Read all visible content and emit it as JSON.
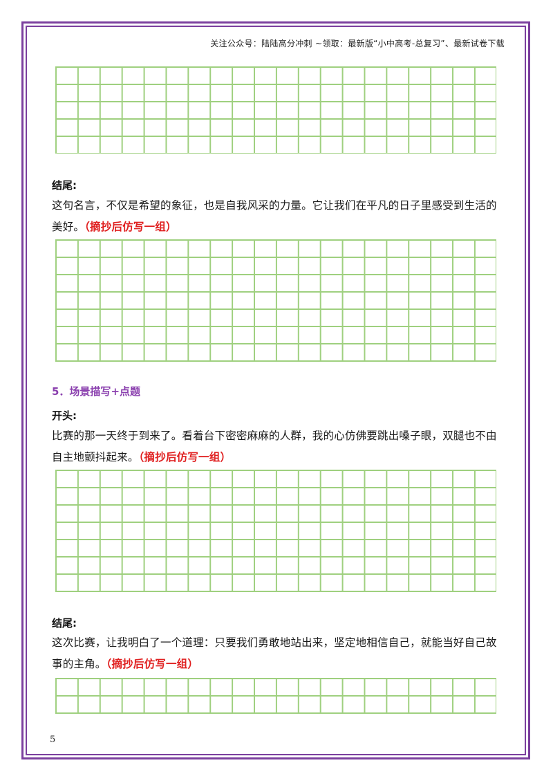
{
  "header": {
    "text": "关注公众号：陆陆高分冲刺 ~领取：最新版“小中高考-总复习”、最新试卷下载"
  },
  "block1": {
    "ending_label": "结尾:",
    "ending_text": "这句名言，不仅是希望的象征，也是自我风采的力量。它让我们在平凡的日子里感受到生活的美好。",
    "ending_note": "（摘抄后仿写一组）"
  },
  "section5": {
    "title": "5．场景描写+点题",
    "opening_label": "开头:",
    "opening_text": "比赛的那一天终于到来了。看着台下密密麻麻的人群，我的心仿佛要跳出嗓子眼，双腿也不由自主地颤抖起来。",
    "opening_note": "（摘抄后仿写一组）",
    "ending_label": "结尾:",
    "ending_text": "这次比赛，让我明白了一个道理：只要我们勇敢地站出来，坚定地相信自己，就能当好自己故事的主角。",
    "ending_note": "（摘抄后仿写一组）"
  },
  "page_number": "5",
  "colors": {
    "border": "#7b3f9e",
    "grid": "#9fd07f",
    "note": "#e02020",
    "section": "#8a3fae"
  }
}
